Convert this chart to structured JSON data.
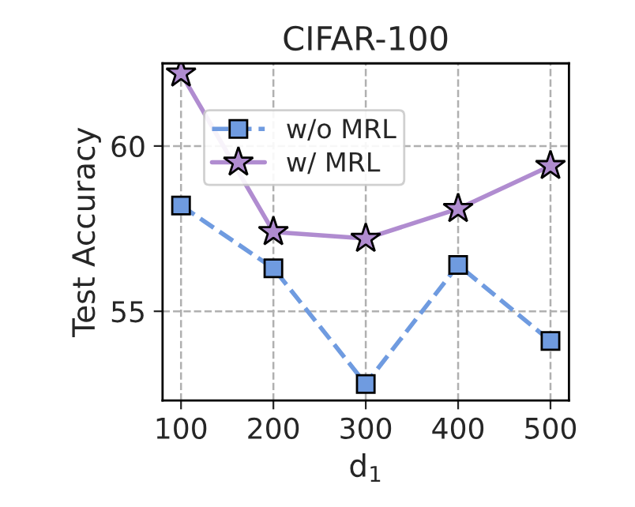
{
  "chart_data": {
    "type": "line",
    "title": "CIFAR-100",
    "xlabel": "d$_{1}$",
    "ylabel": "Test Accuracy",
    "x": [
      100,
      200,
      300,
      400,
      500
    ],
    "series": [
      {
        "name": "w/o MRL",
        "color": "#6f9be0",
        "marker": "square",
        "line_style": "dashed",
        "values": [
          58.2,
          56.3,
          52.8,
          56.4,
          54.1
        ]
      },
      {
        "name": "w/ MRL",
        "color": "#b08cd0",
        "marker": "star",
        "line_style": "solid",
        "values": [
          62.2,
          57.4,
          57.2,
          58.1,
          59.4
        ]
      }
    ],
    "xlim": [
      80,
      520
    ],
    "ylim": [
      52.3,
      62.5
    ],
    "xticks": [
      100,
      200,
      300,
      400,
      500
    ],
    "yticks": [
      55,
      60
    ],
    "grid": true,
    "legend": "top left"
  }
}
